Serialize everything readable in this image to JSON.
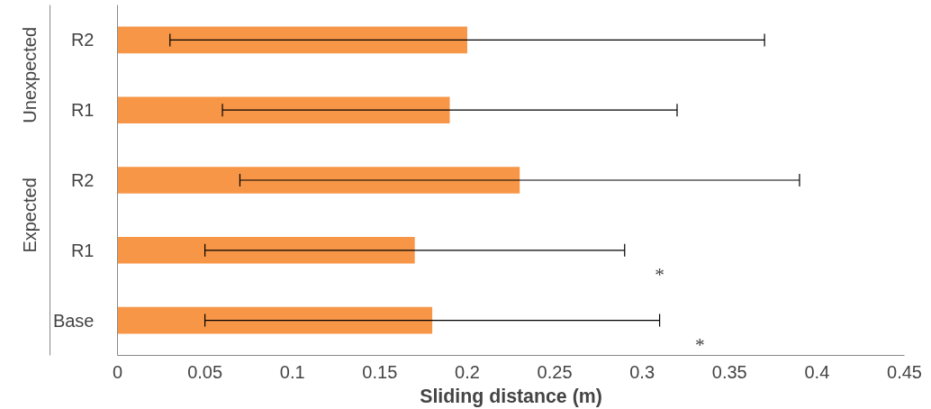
{
  "chart_data": {
    "type": "bar",
    "orientation": "horizontal",
    "categories": [
      "R2",
      "R1",
      "R2",
      "R1",
      "Base"
    ],
    "values": [
      0.2,
      0.19,
      0.23,
      0.17,
      0.18
    ],
    "errors": [
      [
        0.03,
        0.37
      ],
      [
        0.06,
        0.32
      ],
      [
        0.07,
        0.39
      ],
      [
        0.05,
        0.29
      ],
      [
        0.05,
        0.31
      ]
    ],
    "color": "#f79646",
    "xlabel": "Sliding distance (m)",
    "xlim": [
      0,
      0.45
    ],
    "xticks": [
      0,
      0.05,
      0.1,
      0.15,
      0.2,
      0.25,
      0.3,
      0.35,
      0.4,
      0.45
    ],
    "annotations": [
      "Unexpected",
      "Expected",
      "*",
      "*"
    ],
    "grid": false
  }
}
